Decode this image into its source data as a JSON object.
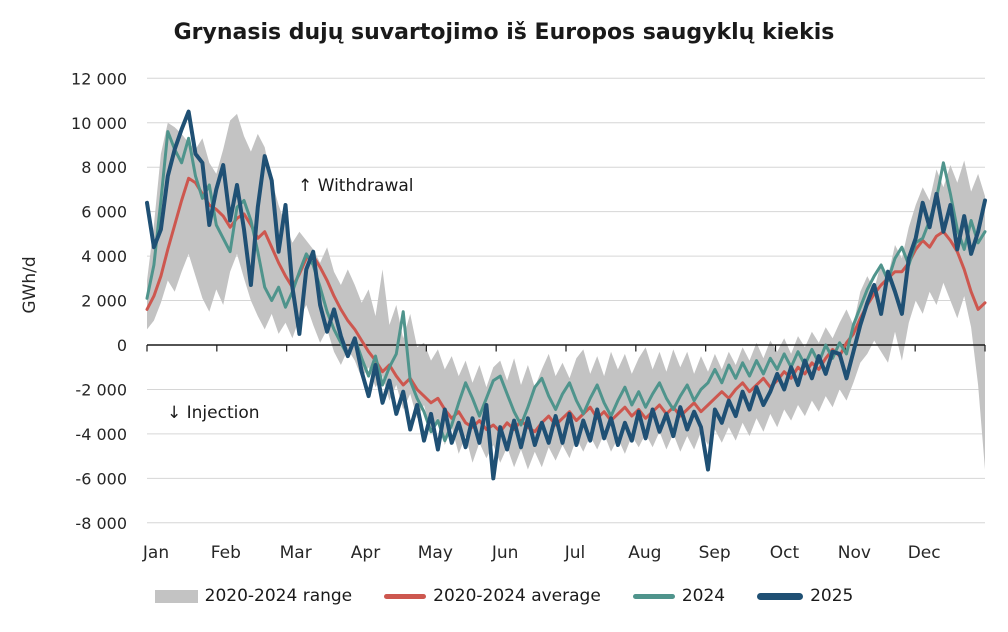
{
  "title": "Grynasis dujų suvartojimo iš Europos saugyklų kiekis",
  "annotations": {
    "withdrawal": "↑ Withdrawal",
    "injection": "↓ Injection"
  },
  "colors": {
    "background": "#ffffff",
    "grid": "#d6d6d6",
    "axis": "#1a1a1a",
    "text": "#262626",
    "band": "#c3c3c3",
    "average": "#cd574f",
    "y2024": "#4f948c",
    "y2025": "#1f5074"
  },
  "chart_data": {
    "type": "line",
    "title": "Grynasis dujų suvartojimo iš Europos saugyklų kiekis",
    "xlabel": "",
    "ylabel": "GWh/d",
    "ylim": [
      -8000,
      12000
    ],
    "grid": "horizontal",
    "legend_position": "bottom",
    "y_tick_values": [
      12000,
      10000,
      8000,
      6000,
      4000,
      2000,
      0,
      -2000,
      -4000,
      -6000,
      -8000
    ],
    "y_tick_labels": [
      "12 000",
      "10 000",
      "8 000",
      "6 000",
      "4 000",
      "2 000",
      "0",
      "-2 000",
      "-4 000",
      "-6 000",
      "-8 000"
    ],
    "x_tick_labels": [
      "Jan",
      "Feb",
      "Mar",
      "Apr",
      "May",
      "Jun",
      "Jul",
      "Aug",
      "Sep",
      "Oct",
      "Nov",
      "Dec"
    ],
    "x_unit": "day-of-year",
    "x_days": [
      1,
      4,
      7,
      10,
      13,
      16,
      19,
      22,
      25,
      28,
      31,
      34,
      37,
      40,
      43,
      46,
      49,
      52,
      55,
      58,
      61,
      64,
      67,
      70,
      73,
      76,
      79,
      82,
      85,
      88,
      91,
      94,
      97,
      100,
      103,
      106,
      109,
      112,
      115,
      118,
      121,
      124,
      127,
      130,
      133,
      136,
      139,
      142,
      145,
      148,
      151,
      154,
      157,
      160,
      163,
      166,
      169,
      172,
      175,
      178,
      181,
      184,
      187,
      190,
      193,
      196,
      199,
      202,
      205,
      208,
      211,
      214,
      217,
      220,
      223,
      226,
      229,
      232,
      235,
      238,
      241,
      244,
      247,
      250,
      253,
      256,
      259,
      262,
      265,
      268,
      271,
      274,
      277,
      280,
      283,
      286,
      289,
      292,
      295,
      298,
      301,
      304,
      307,
      310,
      313,
      316,
      319,
      322,
      325,
      328,
      331,
      334,
      337,
      340,
      343,
      346,
      349,
      352,
      355,
      358,
      361,
      364
    ],
    "series": [
      {
        "name": "2020-2024 range",
        "type": "band",
        "color": "#c3c3c3",
        "max": [
          2900,
          5400,
          8600,
          10000,
          9800,
          9500,
          9100,
          8800,
          9300,
          8200,
          7700,
          8800,
          10100,
          10400,
          9400,
          8700,
          9500,
          8900,
          7400,
          6300,
          5400,
          4600,
          5100,
          4700,
          4300,
          3700,
          4400,
          3300,
          2700,
          3400,
          2700,
          1900,
          2500,
          1300,
          3400,
          900,
          1800,
          300,
          1400,
          -100,
          100,
          -700,
          -200,
          -1100,
          -500,
          -1400,
          -700,
          -1700,
          -900,
          -1900,
          -1000,
          -700,
          -1600,
          -600,
          -1800,
          -900,
          -1900,
          -1100,
          -400,
          -1400,
          -800,
          -1500,
          -600,
          -200,
          -1300,
          -500,
          -1400,
          -300,
          -1100,
          -400,
          -1300,
          -600,
          -100,
          -1100,
          -300,
          -1200,
          -200,
          -1000,
          -300,
          -1300,
          -500,
          -1200,
          -400,
          -1100,
          -300,
          -900,
          -100,
          -700,
          100,
          -600,
          200,
          -300,
          300,
          -400,
          400,
          -100,
          600,
          100,
          800,
          300,
          1000,
          1600,
          900,
          2400,
          3100,
          2500,
          3700,
          3100,
          4500,
          3900,
          5300,
          6300,
          7100,
          6500,
          7900,
          7100,
          8100,
          7300,
          8300,
          6900,
          7700,
          6700
        ],
        "min": [
          700,
          1100,
          1900,
          2900,
          2400,
          3300,
          4100,
          3100,
          2100,
          1500,
          2500,
          1800,
          3300,
          4100,
          3000,
          2000,
          1300,
          700,
          1400,
          500,
          1000,
          300,
          1200,
          1800,
          900,
          100,
          700,
          -300,
          -900,
          -200,
          -700,
          -1500,
          -1000,
          -1900,
          -1400,
          -2500,
          -1800,
          -2900,
          -2200,
          -3300,
          -2700,
          -3900,
          -3300,
          -4500,
          -3700,
          -4900,
          -4100,
          -5300,
          -4400,
          -5100,
          -4500,
          -5300,
          -4600,
          -5500,
          -4700,
          -5600,
          -4800,
          -5500,
          -4600,
          -5200,
          -4500,
          -5100,
          -4200,
          -4800,
          -4100,
          -4700,
          -4000,
          -4800,
          -4200,
          -4900,
          -4100,
          -4600,
          -4000,
          -4600,
          -3900,
          -4700,
          -4000,
          -4800,
          -4100,
          -4700,
          -3900,
          -4500,
          -3800,
          -4400,
          -3700,
          -4300,
          -3500,
          -4100,
          -3300,
          -3900,
          -3100,
          -3700,
          -2900,
          -3400,
          -2700,
          -3200,
          -2500,
          -3000,
          -2300,
          -2800,
          -2000,
          -2500,
          -1700,
          -800,
          -400,
          200,
          -300,
          -800,
          600,
          -700,
          1000,
          2000,
          1400,
          2400,
          1800,
          2800,
          2000,
          1200,
          2200,
          800,
          -1800,
          -5600
        ]
      },
      {
        "name": "2020-2024 average",
        "type": "line",
        "color": "#cd574f",
        "width": 3,
        "values": [
          1600,
          2200,
          3100,
          4300,
          5400,
          6500,
          7500,
          7300,
          6800,
          6300,
          6100,
          5800,
          5300,
          5700,
          5900,
          5400,
          4800,
          5100,
          4400,
          3700,
          3100,
          2600,
          3200,
          3900,
          4000,
          3500,
          2900,
          2200,
          1600,
          1100,
          700,
          200,
          -300,
          -700,
          -1200,
          -900,
          -1400,
          -1800,
          -1500,
          -2000,
          -2300,
          -2600,
          -2400,
          -2900,
          -3300,
          -3000,
          -3500,
          -3700,
          -3400,
          -3800,
          -3600,
          -3900,
          -3500,
          -3800,
          -3400,
          -3700,
          -3900,
          -3500,
          -3200,
          -3600,
          -3300,
          -3000,
          -3400,
          -3100,
          -2800,
          -3300,
          -3000,
          -3400,
          -3100,
          -2800,
          -3200,
          -2900,
          -3300,
          -3000,
          -2700,
          -3100,
          -2800,
          -3200,
          -2900,
          -2600,
          -3000,
          -2700,
          -2400,
          -2100,
          -2400,
          -2000,
          -1700,
          -2100,
          -1800,
          -1500,
          -1900,
          -1600,
          -1200,
          -1500,
          -1000,
          -1300,
          -800,
          -1100,
          -600,
          -200,
          -500,
          100,
          500,
          1200,
          1800,
          2300,
          2700,
          3000,
          3300,
          3300,
          3700,
          4300,
          4700,
          4400,
          4900,
          5100,
          4700,
          4200,
          3400,
          2400,
          1600,
          1900
        ]
      },
      {
        "name": "2024",
        "type": "line",
        "color": "#4f948c",
        "width": 3,
        "values": [
          2100,
          3600,
          6500,
          9600,
          8800,
          8200,
          9300,
          7600,
          6600,
          7200,
          5400,
          4800,
          4200,
          6200,
          6500,
          5600,
          4200,
          2600,
          2000,
          2600,
          1700,
          2400,
          3300,
          4100,
          3600,
          2600,
          1500,
          700,
          100,
          -500,
          300,
          -600,
          -1400,
          -500,
          -1800,
          -1000,
          -400,
          1500,
          -1600,
          -2400,
          -3000,
          -3900,
          -3400,
          -4300,
          -3600,
          -2600,
          -1700,
          -2400,
          -3200,
          -2400,
          -1600,
          -1400,
          -2200,
          -3000,
          -3600,
          -2800,
          -1900,
          -1500,
          -2300,
          -2900,
          -2200,
          -1700,
          -2500,
          -3100,
          -2400,
          -1800,
          -2600,
          -3200,
          -2500,
          -1900,
          -2700,
          -2100,
          -2800,
          -2200,
          -1700,
          -2400,
          -2900,
          -2300,
          -1800,
          -2500,
          -2000,
          -1700,
          -1100,
          -1700,
          -900,
          -1500,
          -800,
          -1400,
          -700,
          -1300,
          -600,
          -1100,
          -400,
          -1000,
          -300,
          -900,
          -200,
          -800,
          0,
          -600,
          100,
          -400,
          900,
          1700,
          2500,
          3100,
          3600,
          2900,
          3900,
          4400,
          3600,
          4600,
          4800,
          5600,
          6600,
          8200,
          6800,
          5200,
          4300,
          5600,
          4600,
          5100
        ]
      },
      {
        "name": "2025",
        "type": "line",
        "color": "#1f5074",
        "width": 4,
        "values": [
          6400,
          4400,
          5200,
          7600,
          8800,
          9700,
          10500,
          8600,
          8200,
          5400,
          7000,
          8100,
          5600,
          7200,
          5200,
          2700,
          6200,
          8500,
          7400,
          4200,
          6300,
          2600,
          500,
          3400,
          4200,
          1800,
          600,
          1600,
          400,
          -500,
          300,
          -1200,
          -2300,
          -900,
          -2600,
          -1600,
          -3100,
          -2100,
          -3800,
          -2700,
          -4300,
          -3100,
          -4700,
          -2900,
          -4400,
          -3500,
          -4600,
          -3300,
          -4400,
          -2700,
          -6000,
          -3700,
          -4700,
          -3400,
          -4600,
          -3300,
          -4500,
          -3500,
          -4400,
          -3200,
          -4400,
          -3100,
          -4500,
          -3400,
          -4300,
          -2900,
          -4200,
          -3300,
          -4500,
          -3500,
          -4300,
          -3000,
          -4200,
          -2900,
          -3900,
          -3100,
          -4100,
          -2800,
          -3800,
          -3000,
          -3700,
          -5600,
          -2900,
          -3500,
          -2500,
          -3200,
          -2100,
          -2900,
          -1900,
          -2700,
          -2100,
          -1300,
          -2000,
          -1000,
          -1800,
          -700,
          -1500,
          -500,
          -1300,
          -300,
          -400,
          -1500,
          -300,
          900,
          1900,
          2700,
          1400,
          3300,
          2400,
          1400,
          3900,
          4800,
          6400,
          5300,
          6800,
          5100,
          6300,
          4300,
          5800,
          4100,
          5100,
          6500
        ]
      }
    ]
  }
}
